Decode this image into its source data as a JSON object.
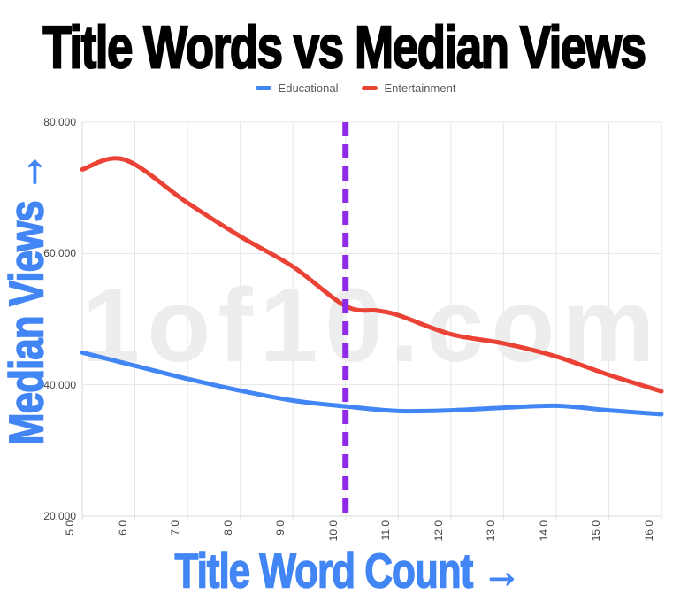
{
  "title": "Title Words vs Median Views",
  "watermark": "1of10.com",
  "legend": {
    "items": [
      {
        "label": "Educational",
        "color": "#4285F4"
      },
      {
        "label": "Entertainment",
        "color": "#EA4335"
      }
    ]
  },
  "colors": {
    "educational_line": "#4285F4",
    "entertainment_line": "#EA4335",
    "reference_line": "#8F2BE8",
    "axis_title_blue": "#4285F4",
    "title_text": "#000000",
    "watermark_gray": "#EDEDED",
    "tick_label": "#444444",
    "gridline": "#E6E6E6",
    "plot_border": "#D9D9D9"
  },
  "chart_data": {
    "type": "line",
    "title": "Title Words vs Median Views",
    "xlabel": "Title Word Count →",
    "ylabel": "Median Views →",
    "xlim": [
      5,
      16
    ],
    "ylim": [
      20000,
      80000
    ],
    "grid": true,
    "legend_position": "top",
    "x_ticks": [
      "5.0",
      "6.0",
      "7.0",
      "8.0",
      "9.0",
      "10.0",
      "11.0",
      "12.0",
      "13.0",
      "14.0",
      "15.0",
      "16.0"
    ],
    "y_ticks": [
      "20,000",
      "40,000",
      "60,000",
      "80,000"
    ],
    "series": [
      {
        "name": "Educational",
        "color": "#4285F4",
        "points": [
          [
            5,
            44900
          ],
          [
            6,
            42900
          ],
          [
            7,
            40900
          ],
          [
            8,
            39100
          ],
          [
            9,
            37600
          ],
          [
            10,
            36700
          ],
          [
            11,
            36000
          ],
          [
            12,
            36100
          ],
          [
            13,
            36500
          ],
          [
            14,
            36800
          ],
          [
            15,
            36100
          ],
          [
            16,
            35500
          ]
        ]
      },
      {
        "name": "Entertainment",
        "color": "#EA4335",
        "points": [
          [
            5,
            72800
          ],
          [
            5.8,
            74300
          ],
          [
            7,
            67700
          ],
          [
            8,
            62600
          ],
          [
            9,
            58000
          ],
          [
            10,
            52000
          ],
          [
            10.6,
            51300
          ],
          [
            11,
            50600
          ],
          [
            12,
            47700
          ],
          [
            13,
            46300
          ],
          [
            14,
            44300
          ],
          [
            15,
            41500
          ],
          [
            16,
            39000
          ]
        ]
      }
    ],
    "reference_line": {
      "x": 10,
      "color": "#8F2BE8",
      "style": "dashed"
    }
  }
}
